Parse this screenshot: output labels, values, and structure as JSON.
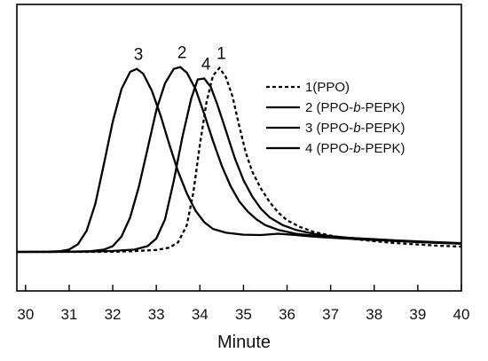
{
  "chart_data": {
    "type": "line",
    "title": "",
    "xlabel": "Minute",
    "ylabel": "",
    "xlim": [
      29.8,
      40
    ],
    "xticks": [
      "30",
      "31",
      "32",
      "33",
      "34",
      "35",
      "36",
      "37",
      "38",
      "39",
      "40"
    ],
    "yticks_shown": false,
    "legend_position": "right",
    "series": [
      {
        "name": "1(PPO)",
        "peak_label": "1",
        "dash": true,
        "points": [
          [
            29.8,
            0.0
          ],
          [
            30.5,
            0.0
          ],
          [
            31.5,
            0.0
          ],
          [
            32.0,
            0.001
          ],
          [
            32.5,
            0.004
          ],
          [
            33.0,
            0.01
          ],
          [
            33.3,
            0.022
          ],
          [
            33.5,
            0.05
          ],
          [
            33.7,
            0.14
          ],
          [
            33.85,
            0.31
          ],
          [
            34.0,
            0.56
          ],
          [
            34.15,
            0.78
          ],
          [
            34.3,
            0.92
          ],
          [
            34.45,
            0.96
          ],
          [
            34.6,
            0.91
          ],
          [
            34.75,
            0.81
          ],
          [
            34.9,
            0.66
          ],
          [
            35.05,
            0.52
          ],
          [
            35.2,
            0.42
          ],
          [
            35.4,
            0.33
          ],
          [
            35.6,
            0.26
          ],
          [
            35.8,
            0.205
          ],
          [
            36.0,
            0.165
          ],
          [
            36.3,
            0.13
          ],
          [
            36.6,
            0.105
          ],
          [
            37.0,
            0.085
          ],
          [
            37.5,
            0.068
          ],
          [
            38.0,
            0.056
          ],
          [
            38.5,
            0.046
          ],
          [
            39.0,
            0.039
          ],
          [
            39.5,
            0.032
          ],
          [
            40.0,
            0.028
          ]
        ]
      },
      {
        "name": "2 (PPO-b-PEPK)",
        "peak_label": "2",
        "dash": false,
        "points": [
          [
            29.8,
            0.0
          ],
          [
            30.5,
            0.0
          ],
          [
            31.0,
            0.001
          ],
          [
            31.5,
            0.004
          ],
          [
            31.8,
            0.012
          ],
          [
            32.0,
            0.03
          ],
          [
            32.2,
            0.08
          ],
          [
            32.4,
            0.18
          ],
          [
            32.6,
            0.34
          ],
          [
            32.8,
            0.54
          ],
          [
            33.0,
            0.74
          ],
          [
            33.2,
            0.88
          ],
          [
            33.4,
            0.955
          ],
          [
            33.55,
            0.965
          ],
          [
            33.7,
            0.935
          ],
          [
            33.9,
            0.85
          ],
          [
            34.1,
            0.72
          ],
          [
            34.3,
            0.58
          ],
          [
            34.5,
            0.45
          ],
          [
            34.7,
            0.345
          ],
          [
            34.9,
            0.265
          ],
          [
            35.1,
            0.21
          ],
          [
            35.3,
            0.17
          ],
          [
            35.5,
            0.14
          ],
          [
            35.8,
            0.115
          ],
          [
            36.2,
            0.095
          ],
          [
            36.6,
            0.085
          ],
          [
            37.0,
            0.078
          ],
          [
            37.5,
            0.072
          ],
          [
            38.0,
            0.066
          ],
          [
            38.5,
            0.06
          ],
          [
            39.0,
            0.055
          ],
          [
            39.5,
            0.05
          ],
          [
            40.0,
            0.046
          ]
        ]
      },
      {
        "name": "3 (PPO-b-PEPK)",
        "peak_label": "3",
        "dash": false,
        "points": [
          [
            29.8,
            0.0
          ],
          [
            30.5,
            0.001
          ],
          [
            30.8,
            0.004
          ],
          [
            31.0,
            0.012
          ],
          [
            31.2,
            0.04
          ],
          [
            31.4,
            0.11
          ],
          [
            31.6,
            0.25
          ],
          [
            31.8,
            0.46
          ],
          [
            32.0,
            0.68
          ],
          [
            32.2,
            0.85
          ],
          [
            32.4,
            0.94
          ],
          [
            32.55,
            0.955
          ],
          [
            32.7,
            0.93
          ],
          [
            32.9,
            0.84
          ],
          [
            33.1,
            0.71
          ],
          [
            33.3,
            0.56
          ],
          [
            33.5,
            0.42
          ],
          [
            33.7,
            0.305
          ],
          [
            33.9,
            0.215
          ],
          [
            34.1,
            0.155
          ],
          [
            34.3,
            0.12
          ],
          [
            34.6,
            0.1
          ],
          [
            35.0,
            0.09
          ],
          [
            35.4,
            0.088
          ],
          [
            35.8,
            0.095
          ],
          [
            36.2,
            0.088
          ],
          [
            36.6,
            0.08
          ],
          [
            37.0,
            0.074
          ],
          [
            37.5,
            0.068
          ],
          [
            38.0,
            0.062
          ],
          [
            38.5,
            0.057
          ],
          [
            39.0,
            0.052
          ],
          [
            39.5,
            0.047
          ],
          [
            40.0,
            0.043
          ]
        ]
      },
      {
        "name": "4 (PPO-b-PEPK)",
        "peak_label": "4",
        "dash": false,
        "points": [
          [
            29.8,
            0.0
          ],
          [
            30.5,
            0.0
          ],
          [
            31.5,
            0.002
          ],
          [
            32.0,
            0.005
          ],
          [
            32.5,
            0.012
          ],
          [
            32.8,
            0.03
          ],
          [
            33.0,
            0.07
          ],
          [
            33.2,
            0.17
          ],
          [
            33.4,
            0.37
          ],
          [
            33.6,
            0.6
          ],
          [
            33.8,
            0.8
          ],
          [
            33.95,
            0.9
          ],
          [
            34.1,
            0.905
          ],
          [
            34.25,
            0.86
          ],
          [
            34.4,
            0.77
          ],
          [
            34.6,
            0.63
          ],
          [
            34.8,
            0.49
          ],
          [
            35.0,
            0.375
          ],
          [
            35.2,
            0.29
          ],
          [
            35.4,
            0.225
          ],
          [
            35.6,
            0.18
          ],
          [
            35.9,
            0.14
          ],
          [
            36.2,
            0.115
          ],
          [
            36.6,
            0.095
          ],
          [
            37.0,
            0.082
          ],
          [
            37.5,
            0.072
          ],
          [
            38.0,
            0.064
          ],
          [
            38.5,
            0.058
          ],
          [
            39.0,
            0.052
          ],
          [
            39.5,
            0.047
          ],
          [
            40.0,
            0.043
          ]
        ]
      }
    ]
  }
}
